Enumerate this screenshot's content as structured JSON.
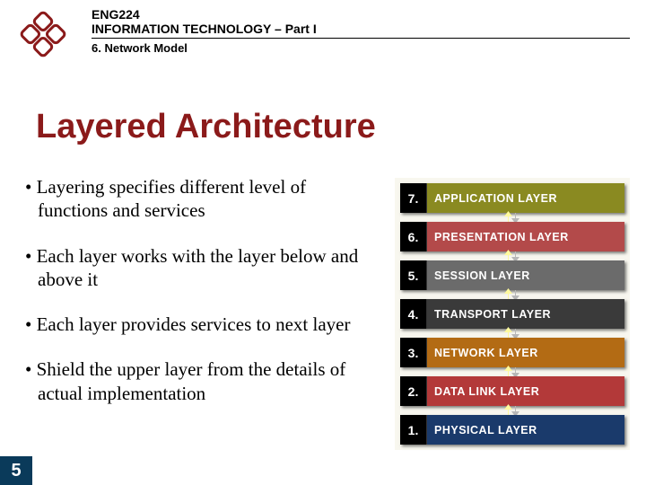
{
  "header": {
    "course_code": "ENG224",
    "course_title": "INFORMATION TECHNOLOGY – Part I",
    "section": "6. Network Model"
  },
  "logo": {
    "outline_color": "#8b1a1a",
    "fill_color": "#ffffff"
  },
  "title": "Layered Architecture",
  "title_color": "#8b1a1a",
  "bullets": [
    "Layering specifies different level of functions and services",
    "Each layer works with the layer below and above it",
    "Each layer provides services to next layer",
    "Shield the upper layer from the details of actual implementation"
  ],
  "layers_diagram": {
    "background": "#f8f7ef",
    "num_box_bg": "#000000",
    "num_box_color": "#ffffff",
    "label_color": "#ffffff",
    "connector_up_color": "#fffa9e",
    "connector_down_color": "#b8b8b8",
    "layers": [
      {
        "num": "7.",
        "label": "APPLICATION LAYER",
        "bg": "#8a8a21"
      },
      {
        "num": "6.",
        "label": "PRESENTATION LAYER",
        "bg": "#b34a4a"
      },
      {
        "num": "5.",
        "label": "SESSION LAYER",
        "bg": "#6b6b6b"
      },
      {
        "num": "4.",
        "label": "TRANSPORT LAYER",
        "bg": "#3a3a3a"
      },
      {
        "num": "3.",
        "label": "NETWORK LAYER",
        "bg": "#b36b14"
      },
      {
        "num": "2.",
        "label": "DATA LINK LAYER",
        "bg": "#b33939"
      },
      {
        "num": "1.",
        "label": "PHYSICAL LAYER",
        "bg": "#1a3a6b"
      }
    ]
  },
  "page_number": "5",
  "page_number_bg": "#0a3a5a"
}
